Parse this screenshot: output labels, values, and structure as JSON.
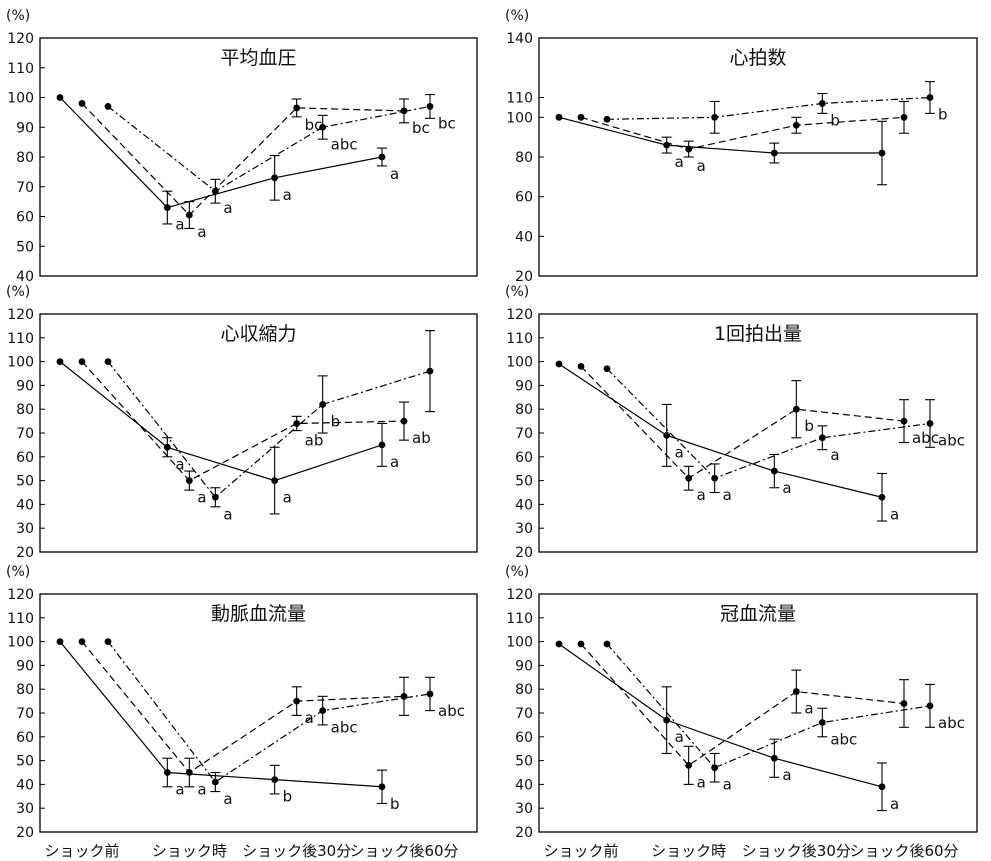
{
  "y_unit_label": "(%)",
  "x_categories": [
    "ショック前",
    "ショック時",
    "ショック後30分",
    "ショック後60分"
  ],
  "chart_data": [
    {
      "type": "line",
      "title": "平均血圧",
      "ylabel": "(%)",
      "ylim": [
        40,
        120
      ],
      "yticks": [
        40,
        50,
        60,
        70,
        80,
        90,
        100,
        110,
        120
      ],
      "categories": [
        "ショック前",
        "ショック時",
        "ショック後30分",
        "ショック後60分"
      ],
      "series": [
        {
          "style": "solid",
          "points": [
            {
              "x": 0,
              "y": 100,
              "err": 0,
              "label": ""
            },
            {
              "x": 1,
              "y": 63,
              "err": 5.5,
              "label": "a"
            },
            {
              "x": 2,
              "y": 73,
              "err": 7.5,
              "label": "a"
            },
            {
              "x": 3,
              "y": 80,
              "err": 3,
              "label": "a"
            }
          ]
        },
        {
          "style": "dashed",
          "points": [
            {
              "x": 0,
              "y": 98,
              "err": 0,
              "label": ""
            },
            {
              "x": 1,
              "y": 60.5,
              "err": 4.5,
              "label": "a"
            },
            {
              "x": 2,
              "y": 96.5,
              "err": 3,
              "label": "bc"
            },
            {
              "x": 3,
              "y": 95.5,
              "err": 4,
              "label": "bc"
            }
          ]
        },
        {
          "style": "dashdot",
          "points": [
            {
              "x": 0,
              "y": 97,
              "err": 0,
              "label": ""
            },
            {
              "x": 1,
              "y": 68.5,
              "err": 4,
              "label": "a"
            },
            {
              "x": 2,
              "y": 90,
              "err": 4,
              "label": "abc"
            },
            {
              "x": 3,
              "y": 97,
              "err": 4,
              "label": "bc"
            }
          ]
        }
      ]
    },
    {
      "type": "line",
      "title": "心拍数",
      "ylabel": "(%)",
      "ylim": [
        20,
        140
      ],
      "yticks": [
        20,
        40,
        60,
        80,
        100,
        110,
        140
      ],
      "categories": [
        "ショック前",
        "ショック時",
        "ショック後30分",
        "ショック後60分"
      ],
      "series": [
        {
          "style": "solid",
          "points": [
            {
              "x": 0,
              "y": 100,
              "err": 0,
              "label": ""
            },
            {
              "x": 1,
              "y": 86,
              "err": 4,
              "label": "a"
            },
            {
              "x": 2,
              "y": 82,
              "err": 5,
              "label": ""
            },
            {
              "x": 3,
              "y": 82,
              "err": 16,
              "label": ""
            }
          ]
        },
        {
          "style": "dashed",
          "points": [
            {
              "x": 0,
              "y": 100,
              "err": 0,
              "label": ""
            },
            {
              "x": 1,
              "y": 84,
              "err": 4,
              "label": "a"
            },
            {
              "x": 2,
              "y": 96,
              "err": 4,
              "label": ""
            },
            {
              "x": 3,
              "y": 100,
              "err": 8,
              "label": ""
            }
          ]
        },
        {
          "style": "dashdot",
          "points": [
            {
              "x": 0,
              "y": 99,
              "err": 0,
              "label": ""
            },
            {
              "x": 1,
              "y": 100,
              "err": 8,
              "label": ""
            },
            {
              "x": 2,
              "y": 107,
              "err": 5,
              "label": "b"
            },
            {
              "x": 3,
              "y": 110,
              "err": 8,
              "label": "b"
            }
          ]
        }
      ]
    },
    {
      "type": "line",
      "title": "心収縮力",
      "ylabel": "(%)",
      "ylim": [
        20,
        120
      ],
      "yticks": [
        20,
        30,
        40,
        50,
        60,
        70,
        80,
        90,
        100,
        110,
        120
      ],
      "categories": [
        "ショック前",
        "ショック時",
        "ショック後30分",
        "ショック後60分"
      ],
      "series": [
        {
          "style": "solid",
          "points": [
            {
              "x": 0,
              "y": 100,
              "err": 0,
              "label": ""
            },
            {
              "x": 1,
              "y": 64,
              "err": 4,
              "label": "a"
            },
            {
              "x": 2,
              "y": 50,
              "err": 14,
              "label": "a"
            },
            {
              "x": 3,
              "y": 65,
              "err": 9,
              "label": "a"
            }
          ]
        },
        {
          "style": "dashed",
          "points": [
            {
              "x": 0,
              "y": 100,
              "err": 0,
              "label": ""
            },
            {
              "x": 1,
              "y": 50,
              "err": 4,
              "label": "a"
            },
            {
              "x": 2,
              "y": 74,
              "err": 3,
              "label": "ab"
            },
            {
              "x": 3,
              "y": 75,
              "err": 8,
              "label": "ab"
            }
          ]
        },
        {
          "style": "dashdot",
          "points": [
            {
              "x": 0,
              "y": 100,
              "err": 0,
              "label": ""
            },
            {
              "x": 1,
              "y": 43,
              "err": 4,
              "label": "a"
            },
            {
              "x": 2,
              "y": 82,
              "err": 12,
              "label": "b"
            },
            {
              "x": 3,
              "y": 96,
              "err": 17,
              "label": ""
            }
          ]
        }
      ]
    },
    {
      "type": "line",
      "title": "1回拍出量",
      "ylabel": "(%)",
      "ylim": [
        20,
        120
      ],
      "yticks": [
        20,
        30,
        40,
        50,
        60,
        70,
        80,
        90,
        100,
        110,
        120
      ],
      "categories": [
        "ショック前",
        "ショック時",
        "ショック後30分",
        "ショック後60分"
      ],
      "series": [
        {
          "style": "solid",
          "points": [
            {
              "x": 0,
              "y": 99,
              "err": 0,
              "label": ""
            },
            {
              "x": 1,
              "y": 69,
              "err": 13,
              "label": "a"
            },
            {
              "x": 2,
              "y": 54,
              "err": 7,
              "label": "a"
            },
            {
              "x": 3,
              "y": 43,
              "err": 10,
              "label": "a"
            }
          ]
        },
        {
          "style": "dashed",
          "points": [
            {
              "x": 0,
              "y": 98,
              "err": 0,
              "label": ""
            },
            {
              "x": 1,
              "y": 51,
              "err": 5,
              "label": "a"
            },
            {
              "x": 2,
              "y": 80,
              "err": 12,
              "label": "b"
            },
            {
              "x": 3,
              "y": 75,
              "err": 9,
              "label": "abc"
            }
          ]
        },
        {
          "style": "dashdot",
          "points": [
            {
              "x": 0,
              "y": 97,
              "err": 0,
              "label": ""
            },
            {
              "x": 1,
              "y": 51,
              "err": 6,
              "label": "a"
            },
            {
              "x": 2,
              "y": 68,
              "err": 5,
              "label": "a"
            },
            {
              "x": 3,
              "y": 74,
              "err": 10,
              "label": "abc"
            }
          ]
        }
      ]
    },
    {
      "type": "line",
      "title": "動脈血流量",
      "ylabel": "(%)",
      "ylim": [
        20,
        120
      ],
      "yticks": [
        20,
        30,
        40,
        50,
        60,
        70,
        80,
        90,
        100,
        110,
        120
      ],
      "categories": [
        "ショック前",
        "ショック時",
        "ショック後30分",
        "ショック後60分"
      ],
      "series": [
        {
          "style": "solid",
          "points": [
            {
              "x": 0,
              "y": 100,
              "err": 0,
              "label": ""
            },
            {
              "x": 1,
              "y": 45,
              "err": 6,
              "label": "a"
            },
            {
              "x": 2,
              "y": 42,
              "err": 6,
              "label": "b"
            },
            {
              "x": 3,
              "y": 39,
              "err": 7,
              "label": "b"
            }
          ]
        },
        {
          "style": "dashed",
          "points": [
            {
              "x": 0,
              "y": 100,
              "err": 0,
              "label": ""
            },
            {
              "x": 1,
              "y": 45,
              "err": 6,
              "label": "a"
            },
            {
              "x": 2,
              "y": 75,
              "err": 6,
              "label": "a"
            },
            {
              "x": 3,
              "y": 77,
              "err": 8,
              "label": ""
            }
          ]
        },
        {
          "style": "dashdot",
          "points": [
            {
              "x": 0,
              "y": 100,
              "err": 0,
              "label": ""
            },
            {
              "x": 1,
              "y": 41,
              "err": 4,
              "label": "a"
            },
            {
              "x": 2,
              "y": 71,
              "err": 6,
              "label": "abc"
            },
            {
              "x": 3,
              "y": 78,
              "err": 7,
              "label": "abc"
            }
          ]
        }
      ]
    },
    {
      "type": "line",
      "title": "冠血流量",
      "ylabel": "(%)",
      "ylim": [
        20,
        120
      ],
      "yticks": [
        20,
        30,
        40,
        50,
        60,
        70,
        80,
        90,
        100,
        110,
        120
      ],
      "categories": [
        "ショック前",
        "ショック時",
        "ショック後30分",
        "ショック後60分"
      ],
      "series": [
        {
          "style": "solid",
          "points": [
            {
              "x": 0,
              "y": 99,
              "err": 0,
              "label": ""
            },
            {
              "x": 1,
              "y": 67,
              "err": 14,
              "label": "a"
            },
            {
              "x": 2,
              "y": 51,
              "err": 8,
              "label": "a"
            },
            {
              "x": 3,
              "y": 39,
              "err": 10,
              "label": "a"
            }
          ]
        },
        {
          "style": "dashed",
          "points": [
            {
              "x": 0,
              "y": 99,
              "err": 0,
              "label": ""
            },
            {
              "x": 1,
              "y": 48,
              "err": 8,
              "label": "a"
            },
            {
              "x": 2,
              "y": 79,
              "err": 9,
              "label": "a"
            },
            {
              "x": 3,
              "y": 74,
              "err": 10,
              "label": ""
            }
          ]
        },
        {
          "style": "dashdot",
          "points": [
            {
              "x": 0,
              "y": 99,
              "err": 0,
              "label": ""
            },
            {
              "x": 1,
              "y": 47,
              "err": 6,
              "label": "a"
            },
            {
              "x": 2,
              "y": 66,
              "err": 6,
              "label": "abc"
            },
            {
              "x": 3,
              "y": 73,
              "err": 9,
              "label": "abc"
            }
          ]
        }
      ]
    }
  ]
}
